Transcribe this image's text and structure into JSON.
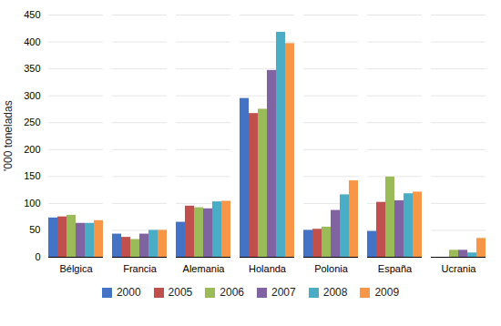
{
  "chart_data": {
    "type": "bar",
    "categories": [
      "Bélgica",
      "Francia",
      "Alemania",
      "Holanda",
      "Polonia",
      "España",
      "Ucrania"
    ],
    "series": [
      {
        "name": "2000",
        "color": "#4472c4",
        "values": [
          73,
          43,
          65,
          295,
          50,
          48,
          0
        ]
      },
      {
        "name": "2005",
        "color": "#c0504d",
        "values": [
          75,
          37,
          95,
          267,
          52,
          102,
          0
        ]
      },
      {
        "name": "2006",
        "color": "#9bbb59",
        "values": [
          78,
          33,
          92,
          275,
          56,
          149,
          13
        ]
      },
      {
        "name": "2007",
        "color": "#8064a2",
        "values": [
          63,
          43,
          90,
          347,
          87,
          105,
          13
        ]
      },
      {
        "name": "2008",
        "color": "#4bacc6",
        "values": [
          63,
          50,
          103,
          418,
          116,
          118,
          8
        ]
      },
      {
        "name": "2009",
        "color": "#f79646",
        "values": [
          68,
          50,
          104,
          397,
          142,
          121,
          35
        ]
      }
    ],
    "ylabel": "'000 toneladas",
    "ylim": [
      0,
      450
    ],
    "yticks": [
      0,
      50,
      100,
      150,
      200,
      250,
      300,
      350,
      400,
      450
    ],
    "grid": true,
    "legend": "bottom"
  }
}
